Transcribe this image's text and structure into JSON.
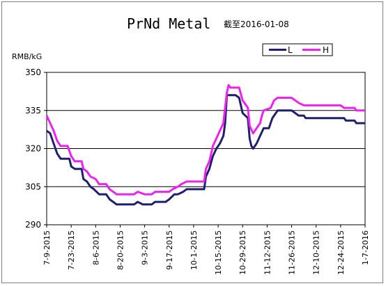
{
  "chart_data": {
    "type": "line",
    "title": "PrNd Metal",
    "subtitle": "截至2016-01-08",
    "ylabel": "RMB/kG",
    "ylim": [
      290,
      350
    ],
    "yticks": [
      290,
      305,
      320,
      335,
      350
    ],
    "xlim": [
      0,
      182
    ],
    "grid": "horizontal",
    "legend_position": "top-right",
    "x_tick_labels": [
      "7-9-2015",
      "7-23-2015",
      "8-6-2015",
      "8-20-2015",
      "9-3-2015",
      "9-17-2015",
      "10-1-2015",
      "10-15-2015",
      "10-29-2015",
      "11-12-2015",
      "11-26-2015",
      "12-10-2015",
      "12-24-2015",
      "1-7-2016"
    ],
    "x_tick_days": [
      0,
      14,
      28,
      42,
      56,
      70,
      84,
      98,
      112,
      126,
      140,
      154,
      168,
      182
    ],
    "series": [
      {
        "name": "L",
        "color": "#1f1f6e",
        "points": [
          [
            0,
            327
          ],
          [
            2,
            326
          ],
          [
            4,
            322
          ],
          [
            6,
            318
          ],
          [
            8,
            316
          ],
          [
            13,
            316
          ],
          [
            14,
            313
          ],
          [
            16,
            312
          ],
          [
            20,
            312
          ],
          [
            21,
            308
          ],
          [
            23,
            307
          ],
          [
            25,
            305
          ],
          [
            27,
            304
          ],
          [
            30,
            302
          ],
          [
            34,
            302
          ],
          [
            36,
            300
          ],
          [
            38,
            299
          ],
          [
            40,
            298
          ],
          [
            45,
            298
          ],
          [
            50,
            298
          ],
          [
            52,
            299
          ],
          [
            55,
            298
          ],
          [
            60,
            298
          ],
          [
            62,
            299
          ],
          [
            68,
            299
          ],
          [
            70,
            300
          ],
          [
            73,
            302
          ],
          [
            75,
            302
          ],
          [
            78,
            303
          ],
          [
            80,
            304
          ],
          [
            90,
            304
          ],
          [
            91,
            309
          ],
          [
            93,
            312
          ],
          [
            95,
            317
          ],
          [
            97,
            320
          ],
          [
            99,
            322
          ],
          [
            101,
            325
          ],
          [
            102,
            330
          ],
          [
            103,
            341
          ],
          [
            108,
            341
          ],
          [
            110,
            340
          ],
          [
            112,
            334
          ],
          [
            115,
            332
          ],
          [
            116,
            324
          ],
          [
            117,
            321
          ],
          [
            118,
            320
          ],
          [
            120,
            322
          ],
          [
            122,
            325
          ],
          [
            124,
            328
          ],
          [
            127,
            328
          ],
          [
            129,
            332
          ],
          [
            130,
            333
          ],
          [
            132,
            335
          ],
          [
            140,
            335
          ],
          [
            142,
            334
          ],
          [
            144,
            333
          ],
          [
            147,
            333
          ],
          [
            148,
            332
          ],
          [
            170,
            332
          ],
          [
            171,
            331
          ],
          [
            176,
            331
          ],
          [
            177,
            330
          ],
          [
            182,
            330
          ]
        ]
      },
      {
        "name": "H",
        "color": "#ee22ee",
        "points": [
          [
            0,
            333
          ],
          [
            2,
            330
          ],
          [
            4,
            327
          ],
          [
            6,
            323
          ],
          [
            8,
            321
          ],
          [
            12,
            321
          ],
          [
            14,
            317
          ],
          [
            16,
            315
          ],
          [
            20,
            315
          ],
          [
            21,
            312
          ],
          [
            23,
            311
          ],
          [
            25,
            309
          ],
          [
            28,
            308
          ],
          [
            30,
            306
          ],
          [
            34,
            306
          ],
          [
            36,
            304
          ],
          [
            38,
            303
          ],
          [
            40,
            302
          ],
          [
            50,
            302
          ],
          [
            52,
            303
          ],
          [
            56,
            302
          ],
          [
            60,
            302
          ],
          [
            62,
            303
          ],
          [
            70,
            303
          ],
          [
            72,
            304
          ],
          [
            75,
            305
          ],
          [
            77,
            306
          ],
          [
            80,
            307
          ],
          [
            90,
            307
          ],
          [
            91,
            312
          ],
          [
            93,
            315
          ],
          [
            95,
            321
          ],
          [
            97,
            324
          ],
          [
            99,
            327
          ],
          [
            101,
            330
          ],
          [
            102,
            336
          ],
          [
            103,
            342
          ],
          [
            104,
            345
          ],
          [
            105,
            344
          ],
          [
            110,
            344
          ],
          [
            112,
            339
          ],
          [
            114,
            337
          ],
          [
            115,
            336
          ],
          [
            116,
            329
          ],
          [
            118,
            326
          ],
          [
            120,
            328
          ],
          [
            122,
            330
          ],
          [
            123,
            333
          ],
          [
            124,
            335
          ],
          [
            128,
            336
          ],
          [
            130,
            339
          ],
          [
            132,
            340
          ],
          [
            140,
            340
          ],
          [
            142,
            339
          ],
          [
            144,
            338
          ],
          [
            147,
            337
          ],
          [
            150,
            337
          ],
          [
            168,
            337
          ],
          [
            170,
            336
          ],
          [
            176,
            336
          ],
          [
            177,
            335
          ],
          [
            182,
            335
          ]
        ]
      }
    ]
  }
}
